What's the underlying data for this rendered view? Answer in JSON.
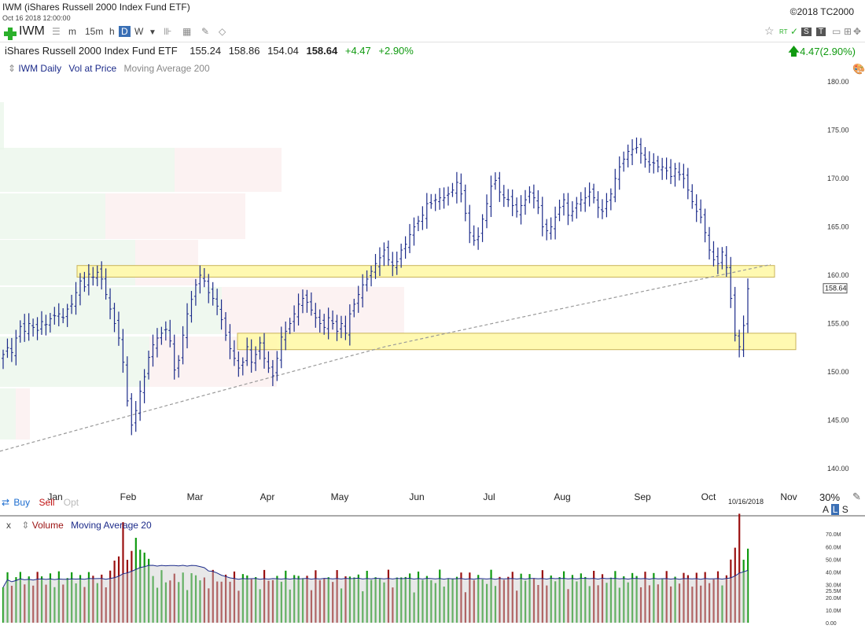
{
  "header": {
    "title": "IWM (iShares Russell 2000 Index Fund ETF)",
    "timestamp": "Oct 16 2018 12:00:00",
    "copyright": "©2018 TC2000"
  },
  "toolbar": {
    "symbol": "IWM",
    "intervals": [
      "m",
      "15m",
      "h",
      "D",
      "W"
    ],
    "active_interval": "D",
    "badge_s": "S",
    "badge_t": "T",
    "rt_label": "RT"
  },
  "quote": {
    "name": "iShares Russell 2000 Index Fund ETF",
    "open": "155.24",
    "high": "158.86",
    "low": "154.04",
    "last": "158.64",
    "change": "+4.47",
    "change_pct": "+2.90%",
    "right_change": "4.47(2.90%)"
  },
  "legend": {
    "symbol_label": "IWM Daily",
    "vap_label": "Vol at Price",
    "ma_label": "Moving Average 200"
  },
  "volume_panel": {
    "label": "Volume",
    "ma_label": "Moving Average 20",
    "close_label": "x"
  },
  "bottom": {
    "buy": "Buy",
    "sell": "Sell",
    "opt": "Opt",
    "zoom": "30%",
    "a_label": "A",
    "l_label": "L",
    "s_label": "S",
    "date_tag": "10/16/2018"
  },
  "colors": {
    "price_bars": "#1c2b8a",
    "ma200": "#999999",
    "up": "#109a10",
    "down": "#9a1010",
    "zone_fill": "#fff8a8",
    "zone_stroke": "#c9b35a"
  },
  "chart_data": [
    {
      "type": "ohlc",
      "y_ticks": [
        "180.00",
        "175.00",
        "170.00",
        "165.00",
        "160.00",
        "155.00",
        "150.00",
        "145.00",
        "140.00"
      ],
      "ylim": [
        138.5,
        181.5
      ],
      "x_labels": [
        "Jan",
        "Feb",
        "Mar",
        "Apr",
        "May",
        "Jun",
        "Jul",
        "Aug",
        "Sep",
        "Oct",
        "Nov"
      ],
      "last_price_label": "158.64",
      "closes": [
        151.8,
        152.5,
        152.0,
        153.5,
        154.7,
        154.2,
        155.0,
        154.6,
        154.3,
        155.2,
        154.9,
        155.5,
        155.8,
        156.0,
        155.6,
        156.5,
        157.0,
        158.2,
        159.4,
        158.8,
        160.1,
        159.8,
        160.3,
        159.6,
        158.0,
        156.5,
        155.0,
        153.5,
        151.0,
        147.0,
        144.5,
        146.0,
        148.0,
        149.5,
        151.5,
        152.8,
        153.5,
        154.0,
        154.4,
        153.2,
        150.2,
        151.2,
        153.8,
        156.0,
        157.5,
        159.0,
        160.0,
        159.4,
        158.2,
        157.6,
        156.8,
        155.4,
        153.8,
        152.4,
        151.4,
        150.4,
        151.0,
        152.6,
        151.0,
        151.8,
        153.0,
        151.4,
        150.4,
        149.6,
        151.4,
        153.6,
        154.2,
        155.0,
        156.0,
        157.0,
        157.6,
        157.2,
        156.4,
        155.6,
        155.0,
        154.6,
        155.6,
        155.0,
        154.2,
        155.0,
        154.0,
        156.0,
        157.0,
        158.0,
        159.0,
        159.6,
        160.4,
        161.2,
        161.8,
        162.6,
        161.6,
        161.0,
        161.4,
        162.6,
        163.2,
        164.2,
        165.0,
        165.6,
        166.2,
        167.4,
        167.4,
        167.8,
        168.0,
        168.0,
        168.4,
        168.8,
        169.6,
        168.4,
        166.4,
        164.4,
        163.6,
        164.0,
        165.8,
        167.4,
        169.2,
        169.8,
        168.6,
        168.0,
        167.8,
        167.2,
        166.6,
        167.2,
        167.8,
        168.6,
        168.0,
        167.0,
        165.0,
        164.6,
        165.0,
        166.0,
        167.0,
        167.8,
        166.2,
        166.6,
        167.4,
        167.8,
        168.0,
        168.6,
        168.0,
        167.0,
        166.6,
        167.6,
        168.4,
        170.0,
        171.2,
        172.0,
        172.8,
        173.0,
        173.2,
        172.6,
        172.0,
        171.4,
        171.6,
        171.2,
        171.2,
        170.8,
        170.2,
        171.0,
        170.4,
        170.0,
        168.8,
        167.6,
        166.6,
        166.0,
        164.4,
        162.6,
        161.6,
        161.2,
        162.4,
        160.8,
        157.6,
        153.8,
        152.6,
        154.8,
        158.6
      ]
    },
    {
      "type": "bar",
      "name": "Volume",
      "y_ticks": [
        "70.0M",
        "60.0M",
        "50.0M",
        "40.0M",
        "30.0M",
        "25.5M",
        "20.0M",
        "10.0M",
        "0.00"
      ],
      "ylim": [
        0,
        72
      ]
    }
  ]
}
